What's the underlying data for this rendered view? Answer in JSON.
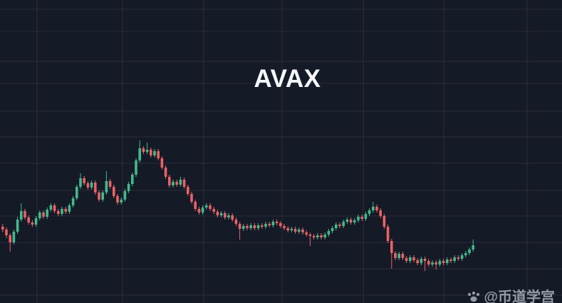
{
  "title": "AVAX",
  "watermark": {
    "icon": "paw-dots-icon",
    "handle": "@币道学宫"
  },
  "colors": {
    "background": "#151a27",
    "bullish": "#3fbb8d",
    "bearish": "#ec6166",
    "grid": "rgba(164,176,205,0.12)",
    "title": "#f5f7fb",
    "watermark": "#9aa1ad"
  },
  "chart_data": {
    "type": "candlestick",
    "title": "AVAX",
    "xlabel": "",
    "ylabel": "",
    "x_axis_labels_visible": false,
    "y_axis_labels_visible": false,
    "legend": false,
    "grid": true,
    "ylim": [
      -12.5,
      200
    ],
    "series": [
      {
        "name": "AVAX",
        "ohlc_format": [
          "open",
          "high",
          "low",
          "close"
        ],
        "ohlc": [
          [
            41,
            43,
            37,
            39
          ],
          [
            39,
            40.5,
            33,
            35
          ],
          [
            35,
            36.5,
            23.5,
            30
          ],
          [
            30,
            39,
            28.5,
            37.5
          ],
          [
            37.5,
            48,
            36,
            46
          ],
          [
            46,
            57.5,
            44.5,
            52
          ],
          [
            52,
            53.5,
            46,
            47.5
          ],
          [
            47.5,
            49,
            42.5,
            44
          ],
          [
            44,
            45.5,
            41,
            42.5
          ],
          [
            42.5,
            48.5,
            41,
            47
          ],
          [
            47,
            52.5,
            45.5,
            51
          ],
          [
            51,
            52.5,
            46.5,
            48
          ],
          [
            48,
            54.5,
            46.5,
            53
          ],
          [
            53,
            57.5,
            51.5,
            56
          ],
          [
            56,
            57.5,
            50.5,
            52
          ],
          [
            52,
            53.5,
            48.5,
            50
          ],
          [
            50,
            55,
            48.5,
            53.5
          ],
          [
            53.5,
            55,
            50,
            51.5
          ],
          [
            51.5,
            57.5,
            50,
            56
          ],
          [
            56,
            62.5,
            54.5,
            61
          ],
          [
            61,
            70.5,
            59.5,
            69
          ],
          [
            69,
            78.5,
            67.5,
            75
          ],
          [
            75,
            76.5,
            70,
            71.5
          ],
          [
            71.5,
            73,
            67,
            68.5
          ],
          [
            68.5,
            73.5,
            67,
            72
          ],
          [
            72,
            73.5,
            63.5,
            65
          ],
          [
            65,
            66.5,
            58.5,
            60
          ],
          [
            60,
            66.5,
            58.5,
            65
          ],
          [
            65,
            80,
            63.5,
            73
          ],
          [
            73,
            74.5,
            67.5,
            69
          ],
          [
            69,
            70.5,
            61,
            62.5
          ],
          [
            62.5,
            64,
            56.5,
            58
          ],
          [
            58,
            61.5,
            56.5,
            60
          ],
          [
            60,
            67.5,
            58.5,
            66
          ],
          [
            66,
            72.5,
            64.5,
            71
          ],
          [
            71,
            79,
            69.5,
            77.5
          ],
          [
            77.5,
            89,
            76,
            87.5
          ],
          [
            87.5,
            101.5,
            86,
            96
          ],
          [
            96,
            97.5,
            92,
            93.5
          ],
          [
            93.5,
            100,
            92,
            95
          ],
          [
            95,
            96.5,
            89.5,
            91
          ],
          [
            91,
            95.5,
            89.5,
            94
          ],
          [
            94,
            95.5,
            87.5,
            89
          ],
          [
            89,
            90.5,
            81,
            82.5
          ],
          [
            82.5,
            84,
            74.5,
            76
          ],
          [
            76,
            77.5,
            68.5,
            70
          ],
          [
            70,
            74,
            68.5,
            72.5
          ],
          [
            72.5,
            74,
            69,
            70.5
          ],
          [
            70.5,
            76,
            69,
            74
          ],
          [
            74,
            75.5,
            67.5,
            69
          ],
          [
            69,
            70.5,
            62.5,
            64
          ],
          [
            64,
            65.5,
            57,
            58.5
          ],
          [
            58.5,
            60,
            52,
            53.5
          ],
          [
            53.5,
            55,
            49.5,
            51
          ],
          [
            51,
            56,
            49.5,
            54.5
          ],
          [
            54.5,
            57.5,
            53,
            56
          ],
          [
            56,
            57.5,
            52,
            53.5
          ],
          [
            53.5,
            55,
            50,
            51.5
          ],
          [
            51.5,
            53,
            47.5,
            49
          ],
          [
            49,
            52,
            47.5,
            50.5
          ],
          [
            50.5,
            52,
            46,
            47.5
          ],
          [
            47.5,
            50.5,
            46,
            49
          ],
          [
            49,
            50.5,
            44.5,
            46
          ],
          [
            46,
            47.5,
            41.5,
            43
          ],
          [
            43,
            44.5,
            32,
            39.5
          ],
          [
            39.5,
            43,
            38,
            41.5
          ],
          [
            41.5,
            43,
            38.5,
            40
          ],
          [
            40,
            43.5,
            38.5,
            42
          ],
          [
            42,
            43.5,
            38.5,
            40
          ],
          [
            40,
            43.5,
            38.5,
            42
          ],
          [
            42,
            43.5,
            39.5,
            41
          ],
          [
            41,
            44.5,
            39.5,
            43
          ],
          [
            43,
            44.5,
            40.5,
            42
          ],
          [
            42,
            46,
            40.5,
            44.5
          ],
          [
            44.5,
            46,
            42,
            43.5
          ],
          [
            43.5,
            45,
            40,
            41.5
          ],
          [
            41.5,
            43,
            38.5,
            40
          ],
          [
            40,
            41.5,
            37,
            38.5
          ],
          [
            38.5,
            41,
            37,
            39.5
          ],
          [
            39.5,
            41,
            36,
            37.5
          ],
          [
            37.5,
            40.5,
            36,
            39
          ],
          [
            39,
            40.5,
            35.5,
            37
          ],
          [
            37,
            38.5,
            34,
            35.5
          ],
          [
            35.5,
            37,
            27.5,
            34.5
          ],
          [
            34.5,
            36,
            32,
            33.5
          ],
          [
            33.5,
            36.5,
            32,
            35
          ],
          [
            35,
            36.5,
            32,
            33.5
          ],
          [
            33.5,
            37,
            32,
            35.5
          ],
          [
            35.5,
            39.5,
            34,
            38
          ],
          [
            38,
            41.5,
            36.5,
            40
          ],
          [
            40,
            44,
            38.5,
            42.5
          ],
          [
            42.5,
            44,
            40,
            41.5
          ],
          [
            41.5,
            46,
            40,
            44.5
          ],
          [
            44.5,
            47.5,
            43,
            46
          ],
          [
            46,
            47.5,
            42.5,
            44
          ],
          [
            44,
            47,
            42.5,
            45.5
          ],
          [
            45.5,
            49.5,
            44,
            48
          ],
          [
            48,
            49.5,
            45,
            46.5
          ],
          [
            46.5,
            51.5,
            45,
            50
          ],
          [
            50,
            54,
            48.5,
            52.5
          ],
          [
            52.5,
            58.5,
            51,
            55
          ],
          [
            55,
            56.5,
            51,
            52.5
          ],
          [
            52.5,
            54,
            47,
            48.5
          ],
          [
            48.5,
            50,
            39.5,
            41
          ],
          [
            41,
            42.5,
            29.5,
            31
          ],
          [
            31,
            32.5,
            11.5,
            22.5
          ],
          [
            22.5,
            24,
            17.5,
            19
          ],
          [
            19,
            23.5,
            17.5,
            22
          ],
          [
            22,
            23.5,
            17.5,
            19
          ],
          [
            19,
            20.5,
            15.5,
            17
          ],
          [
            17,
            21,
            15.5,
            19.5
          ],
          [
            19.5,
            21,
            16,
            17.5
          ],
          [
            17.5,
            19,
            14,
            15.5
          ],
          [
            15.5,
            20,
            14,
            18.5
          ],
          [
            18.5,
            20,
            10,
            17
          ],
          [
            17,
            18.5,
            13,
            14.5
          ],
          [
            14.5,
            17.5,
            13,
            16
          ],
          [
            16,
            17.5,
            11,
            14.5
          ],
          [
            14.5,
            18.5,
            13,
            17
          ],
          [
            17,
            18.5,
            14,
            15.5
          ],
          [
            15.5,
            19.5,
            14,
            18
          ],
          [
            18,
            19.5,
            15.5,
            17
          ],
          [
            17,
            21,
            15.5,
            19.5
          ],
          [
            19.5,
            21,
            17,
            18.5
          ],
          [
            18.5,
            22.5,
            17,
            21
          ],
          [
            21,
            24,
            19.5,
            22.5
          ],
          [
            22.5,
            26.5,
            21,
            25
          ],
          [
            25,
            32,
            23.5,
            28
          ]
        ]
      }
    ]
  }
}
